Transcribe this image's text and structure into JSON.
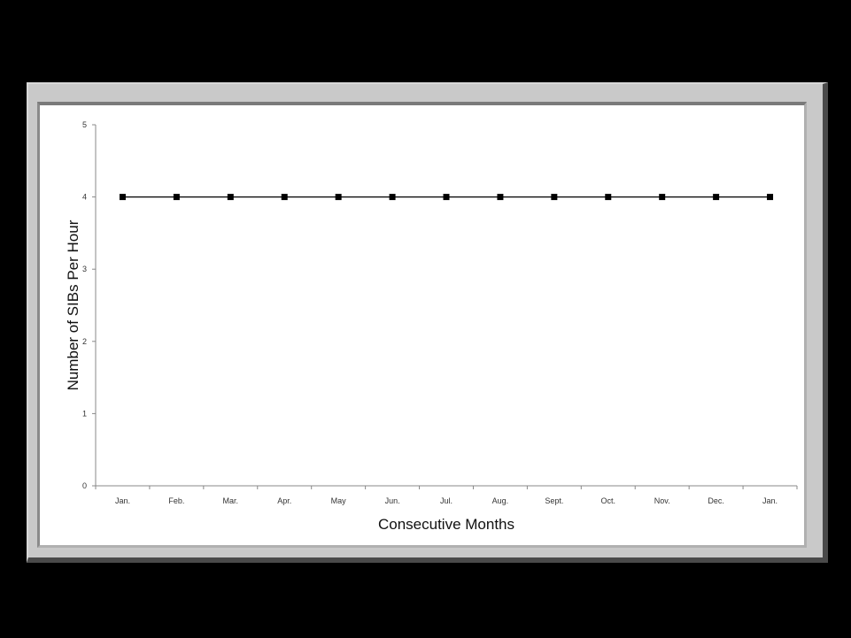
{
  "chart_data": {
    "type": "line",
    "title": "",
    "xlabel": "Consecutive Months",
    "ylabel": "Number of SIBs Per Hour",
    "categories": [
      "Jan.",
      "Feb.",
      "Mar.",
      "Apr.",
      "May",
      "Jun.",
      "Jul.",
      "Aug.",
      "Sept.",
      "Oct.",
      "Nov.",
      "Dec.",
      "Jan."
    ],
    "series": [
      {
        "values": [
          4,
          4,
          4,
          4,
          4,
          4,
          4,
          4,
          4,
          4,
          4,
          4,
          4
        ],
        "color": "#000000",
        "marker": "square"
      }
    ],
    "ylim": [
      0,
      5
    ],
    "yticks": [
      0,
      1,
      2,
      3,
      4,
      5
    ],
    "grid": false,
    "legend": "none"
  }
}
